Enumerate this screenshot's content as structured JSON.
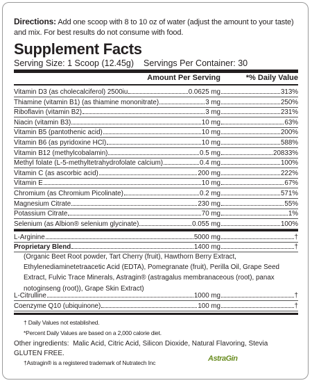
{
  "directions": {
    "label": "Directions:",
    "text": "Add one scoop with 8 to 10 oz of water (adjust the amount to your taste) and mix. For best results do not consume with food."
  },
  "title": "Supplement Facts",
  "serving_size": "Serving Size: 1 Scoop (12.45g)",
  "servings_per_container": "Servings Per Container: 30",
  "header": {
    "amount": "Amount Per Serving",
    "dv": "*% Daily Value"
  },
  "rows": [
    {
      "name": "Vitamin D3 (as cholecalciferol) 2500iu",
      "amount": "0.0625 mg",
      "dv": "313%"
    },
    {
      "name": "Thiamine (vitamin B1) (as thiamine mononitrate)",
      "amount": "3 mg",
      "dv": "250%"
    },
    {
      "name": "Riboflavin (vitamin B2)",
      "amount": "3 mg",
      "dv": "231%"
    },
    {
      "name": "Niacin (vitamin B3)",
      "amount": "10 mg",
      "dv": "63%"
    },
    {
      "name": "Vitamin B5 (pantothenic acid)",
      "amount": "10 mg",
      "dv": "200%"
    },
    {
      "name": "Vitamin B6 (as pyridoxine HCl)",
      "amount": "10 mg",
      "dv": "588%"
    },
    {
      "name": "Vitamin B12 (methylcobalamin)",
      "amount": "0.5 mg",
      "dv": "20833%"
    },
    {
      "name": "Methyl folate (L-5-methyltetrahydrofolate calcium)",
      "amount": "0.4 mg",
      "dv": "100%"
    },
    {
      "name": "Vitamin C (as ascorbic acid)",
      "amount": "200 mg",
      "dv": "222%"
    },
    {
      "name": "Vitamin E",
      "amount": "10 mg",
      "dv": "67%"
    },
    {
      "name": "Chromium (as Chromium Picolinate)",
      "amount": "0.2 mg",
      "dv": "571%"
    },
    {
      "name": "Magnesium Citrate",
      "amount": "230 mg",
      "dv": "55%"
    },
    {
      "name": "Potassium Citrate",
      "amount": "70 mg",
      "dv": "1%"
    },
    {
      "name": "Selenium (as Albion® selenium glycinate)",
      "amount": "0.055 mg",
      "dv": "100%"
    }
  ],
  "other_rows": [
    {
      "name": "L-Arginine",
      "amount": "5000 mg",
      "dv": "†"
    },
    {
      "name": "Proprietary Blend",
      "amount": "1400 mg",
      "dv": "†"
    },
    {
      "name": "L-Citrulline",
      "amount": "1000 mg",
      "dv": "†"
    },
    {
      "name": "Coenzyme Q10 (ubiquinone)",
      "amount": "100 mg",
      "dv": "†"
    }
  ],
  "blend_text": "(Organic Beet Root powder, Tart Cherry (fruit), Hawthorn Berry Extract, Ethylenediaminetetraacetic Acid (EDTA), Pomegranate (fruit), Perilla Oil, Grape Seed Extract, Fulvic Trace Minerals, Astragin® (astragalus membranaceous (root), panax notoginseng (root)), Grape Skin Extract)",
  "footnotes": [
    "† Daily Values not established.",
    "*Percent Daily Values are based on a 2,000 calorie diet."
  ],
  "other_ingredients": {
    "label": "Other ingredients:",
    "text": "Malic Acid, Citric Acid, Silicon Dioxide, Natural Flavoring, Stevia"
  },
  "gluten_free": "GLUTEN FREE.",
  "trademark": "†Astragin® is a registered trademark of Nutratech Inc",
  "logo": "AstraGin"
}
